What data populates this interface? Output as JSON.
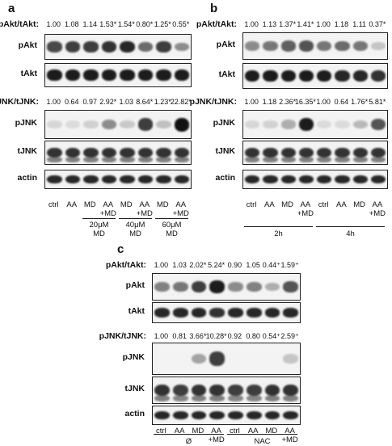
{
  "panels": {
    "a": {
      "letter": "a",
      "akt_label": "pAkt/tAkt:",
      "akt_values": [
        "1.00",
        "1.08",
        "1.14",
        "1.53*",
        "1.54*",
        "0.80*",
        "1.25*",
        "0.55*"
      ],
      "jnk_label": "pJNK/tJNK:",
      "jnk_values": [
        "1.00",
        "0.64",
        "0.97",
        "2.92*",
        "1.03",
        "8.64*",
        "1.23*",
        "22.82*"
      ],
      "rows": [
        "pAkt",
        "tAkt",
        "pJNK",
        "tJNK",
        "actin"
      ],
      "lanes": [
        "ctrl",
        "AA",
        "MD",
        "AA\n+MD",
        "MD",
        "AA\n+MD",
        "MD",
        "AA\n+MD"
      ],
      "groups": [
        "20μM\nMD",
        "40μM\nMD",
        "60μM\nMD"
      ]
    },
    "b": {
      "letter": "b",
      "akt_label": "pAkt/tAkt:",
      "akt_values": [
        "1.00",
        "1.13",
        "1.37*",
        "1.41*",
        "1.00",
        "1.18",
        "1.11",
        "0.37*"
      ],
      "jnk_label": "pJNK/tJNK:",
      "jnk_values": [
        "1.00",
        "1.18",
        "2.36*",
        "16.35*",
        "1.00",
        "0.64",
        "1.76*",
        "5.81*"
      ],
      "rows": [
        "pAkt",
        "tAkt",
        "pJNK",
        "tJNK",
        "actin"
      ],
      "lanes": [
        "ctrl",
        "AA",
        "MD",
        "AA\n+MD",
        "ctrl",
        "AA",
        "MD",
        "AA\n+MD"
      ],
      "groups": [
        "2h",
        "4h"
      ]
    },
    "c": {
      "letter": "c",
      "akt_label": "pAkt/tAkt:",
      "akt_values": [
        "1.00",
        "1.03",
        "2.02*",
        "5.24*",
        "0.90",
        "1.05",
        "0.44⁺",
        "1.59⁺"
      ],
      "jnk_label": "pJNK/tJNK:",
      "jnk_values": [
        "1.00",
        "0.81",
        "3.66*",
        "10.28*",
        "0.92",
        "0.80",
        "0.54⁺",
        "2.59⁺"
      ],
      "rows": [
        "pAkt",
        "tAkt",
        "pJNK",
        "tJNK",
        "actin"
      ],
      "lanes": [
        "ctrl",
        "AA",
        "MD",
        "AA\n+MD",
        "ctrl",
        "AA",
        "MD",
        "AA\n+MD"
      ],
      "groups": [
        "Ø",
        "NAC"
      ]
    }
  },
  "colors": {
    "band": "#111111",
    "membrane": "#f3f3f3"
  }
}
